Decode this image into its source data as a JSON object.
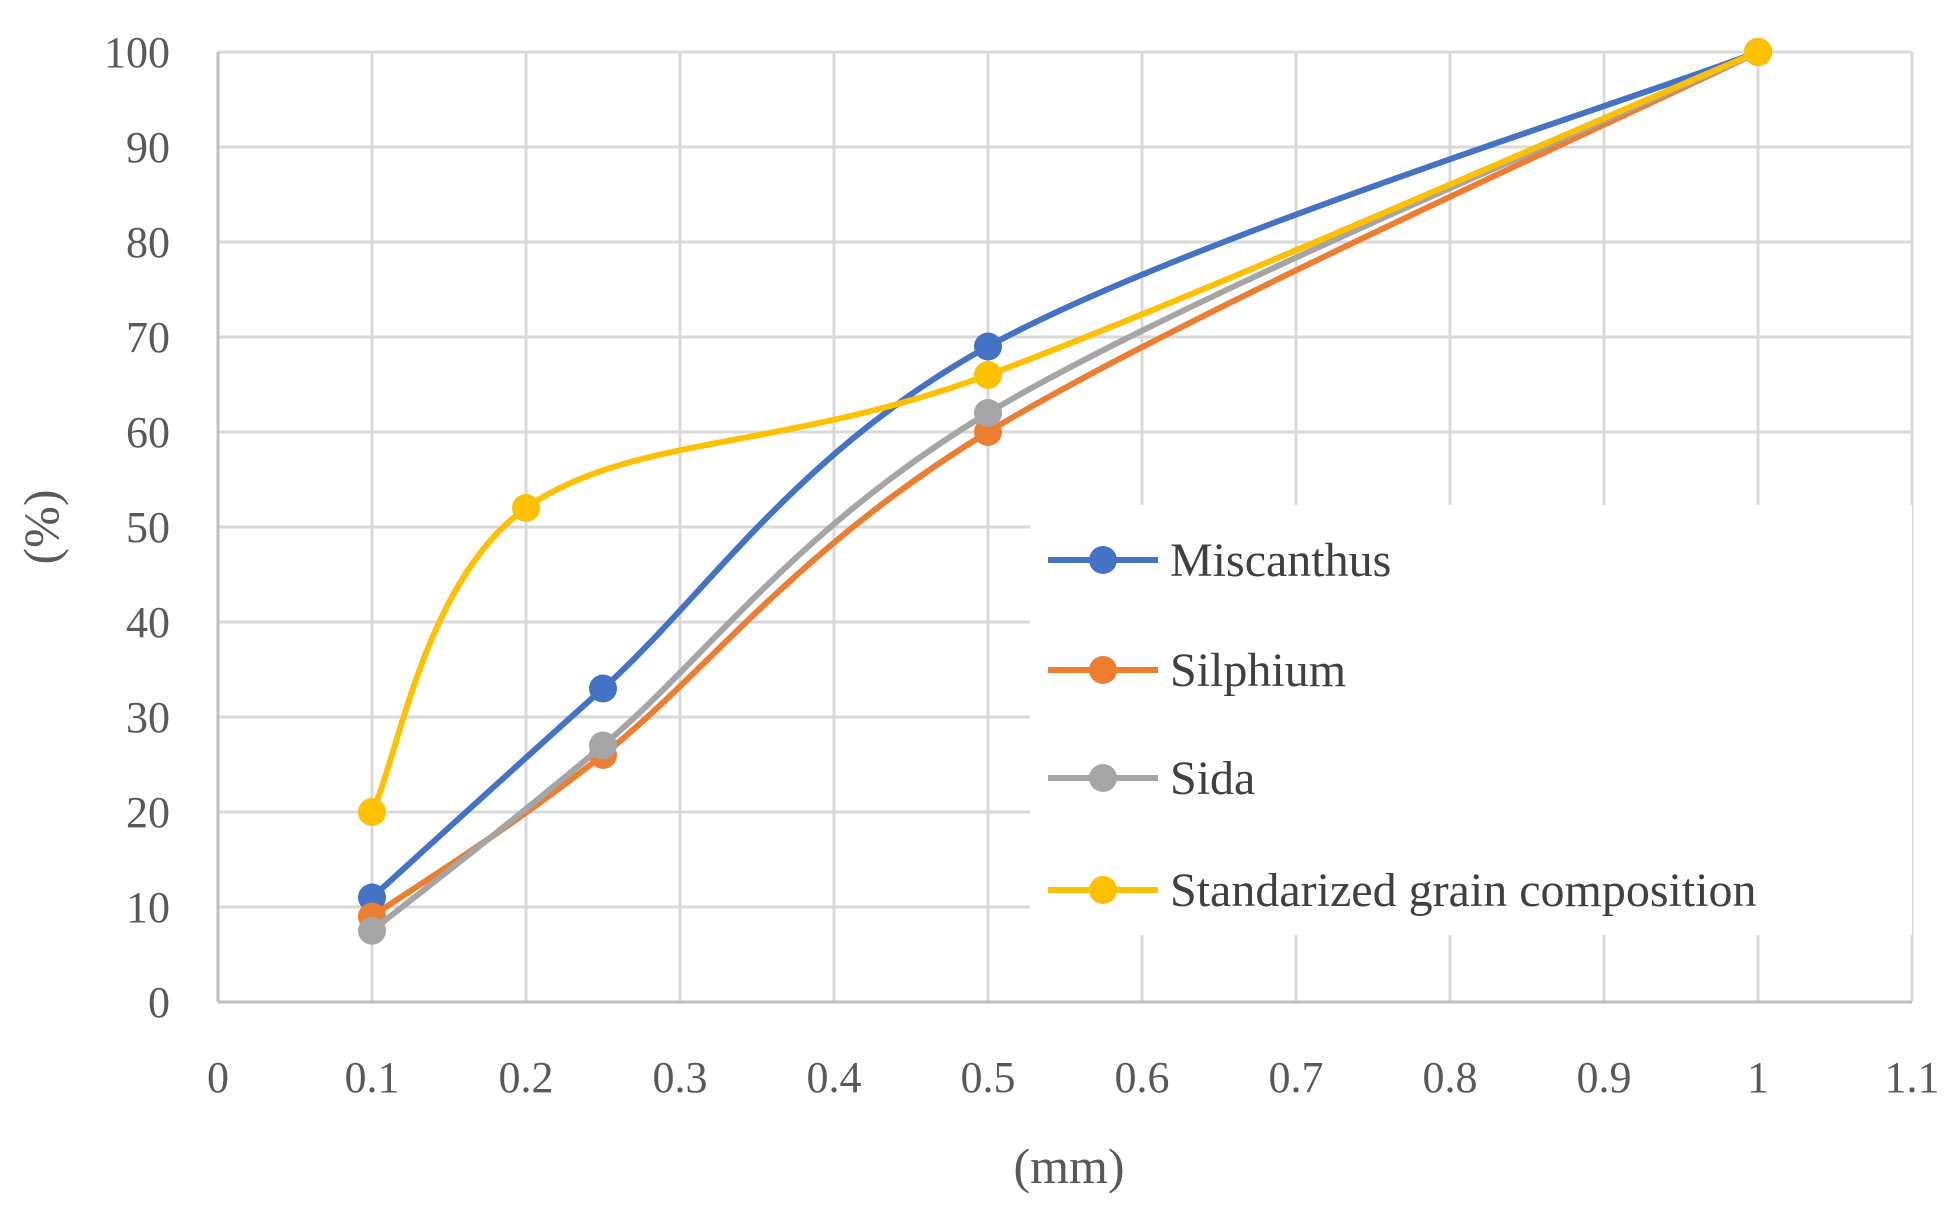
{
  "chart_data": {
    "type": "line",
    "title": "",
    "xlabel": "(mm)",
    "ylabel": "(%)",
    "xlim": [
      0,
      1.1
    ],
    "ylim": [
      0,
      100
    ],
    "x_ticks": [
      "0",
      "0.1",
      "0.2",
      "0.3",
      "0.4",
      "0.5",
      "0.6",
      "0.7",
      "0.8",
      "0.9",
      "1",
      "1.1"
    ],
    "y_ticks": [
      "0",
      "10",
      "20",
      "30",
      "40",
      "50",
      "60",
      "70",
      "80",
      "90",
      "100"
    ],
    "grid": true,
    "legend_position": "right",
    "series": [
      {
        "name": "Miscanthus",
        "color": "#4472C4",
        "x": [
          0.1,
          0.25,
          0.5,
          1
        ],
        "y": [
          11,
          33,
          69,
          100
        ]
      },
      {
        "name": "Silphium",
        "color": "#ED7D31",
        "x": [
          0.1,
          0.25,
          0.5,
          1
        ],
        "y": [
          9,
          26,
          60,
          100
        ]
      },
      {
        "name": "Sida",
        "color": "#A5A5A5",
        "x": [
          0.1,
          0.25,
          0.5,
          1
        ],
        "y": [
          7.5,
          27,
          62,
          100
        ]
      },
      {
        "name": "Standarized grain composition",
        "color": "#FFC000",
        "x": [
          0.1,
          0.2,
          0.5,
          1
        ],
        "y": [
          20,
          52,
          66,
          100
        ]
      }
    ]
  }
}
